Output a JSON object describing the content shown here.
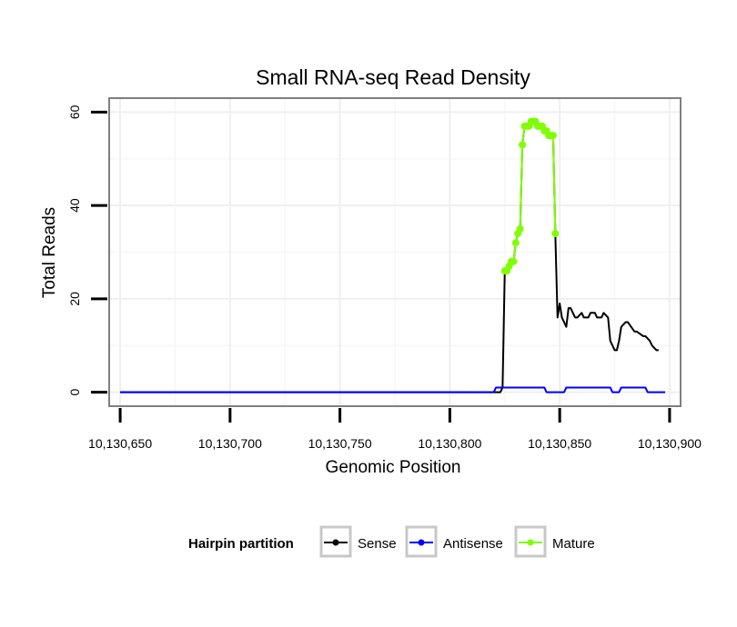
{
  "chart_data": {
    "type": "line",
    "title": "Small RNA-seq Read Density",
    "xlabel": "Genomic Position",
    "ylabel": "Total Reads",
    "xlim": [
      10130645,
      10130905
    ],
    "ylim": [
      -3,
      63
    ],
    "x_ticks": [
      10130650,
      10130700,
      10130750,
      10130800,
      10130850,
      10130900
    ],
    "x_tick_labels": [
      "10,130,650",
      "10,130,700",
      "10,130,750",
      "10,130,800",
      "10,130,850",
      "10,130,900"
    ],
    "y_ticks": [
      0,
      20,
      40,
      60
    ],
    "y_tick_labels": [
      "0",
      "20",
      "40",
      "60"
    ],
    "grid": true,
    "legend": {
      "title": "Hairpin partition",
      "position": "bottom",
      "entries": [
        {
          "name": "Sense",
          "color": "#000000"
        },
        {
          "name": "Antisense",
          "color": "#0000ff"
        },
        {
          "name": "Mature",
          "color": "#7fff00"
        }
      ]
    },
    "series": [
      {
        "name": "Sense",
        "color": "#000000",
        "x": [
          10130650,
          10130823,
          10130824,
          10130825,
          10130826,
          10130827,
          10130828,
          10130829,
          10130830,
          10130831,
          10130832,
          10130833,
          10130834,
          10130835,
          10130836,
          10130837,
          10130838,
          10130839,
          10130840,
          10130841,
          10130842,
          10130843,
          10130844,
          10130845,
          10130846,
          10130847,
          10130848,
          10130849,
          10130850,
          10130851,
          10130852,
          10130853,
          10130854,
          10130855,
          10130856,
          10130857,
          10130858,
          10130860,
          10130861,
          10130863,
          10130864,
          10130866,
          10130867,
          10130869,
          10130870,
          10130872,
          10130873,
          10130874,
          10130875,
          10130876,
          10130877,
          10130878,
          10130880,
          10130881,
          10130884,
          10130885,
          10130888,
          10130889,
          10130891,
          10130892,
          10130894,
          10130895
        ],
        "y": [
          0,
          0,
          1,
          26,
          26,
          27,
          28,
          28,
          32,
          34,
          35,
          53,
          57,
          57,
          57,
          58,
          58,
          58,
          57,
          57,
          57,
          56,
          56,
          55,
          55,
          55,
          34,
          16,
          19,
          16,
          15,
          14,
          18,
          18,
          17,
          16,
          16,
          17,
          16,
          16,
          17,
          17,
          16,
          16,
          17,
          16,
          11,
          10,
          9,
          9,
          11,
          14,
          15,
          15,
          13,
          13,
          12,
          12,
          11,
          10,
          9,
          9
        ]
      },
      {
        "name": "Antisense",
        "color": "#0000ff",
        "x": [
          10130650,
          10130820,
          10130821,
          10130843,
          10130844,
          10130852,
          10130853,
          10130873,
          10130874,
          10130877,
          10130878,
          10130889,
          10130890,
          10130898
        ],
        "y": [
          0,
          0,
          1,
          1,
          0,
          0,
          1,
          1,
          0,
          0,
          1,
          1,
          0,
          0
        ]
      },
      {
        "name": "Mature",
        "color": "#7fff00",
        "x": [
          10130825,
          10130826,
          10130827,
          10130828,
          10130829,
          10130830,
          10130831,
          10130832,
          10130833,
          10130834,
          10130835,
          10130836,
          10130837,
          10130838,
          10130839,
          10130840,
          10130841,
          10130842,
          10130843,
          10130844,
          10130845,
          10130846,
          10130847,
          10130848
        ],
        "y": [
          26,
          26,
          27,
          28,
          28,
          32,
          34,
          35,
          53,
          57,
          57,
          57,
          58,
          58,
          58,
          57,
          57,
          57,
          56,
          56,
          55,
          55,
          55,
          34
        ]
      }
    ]
  }
}
